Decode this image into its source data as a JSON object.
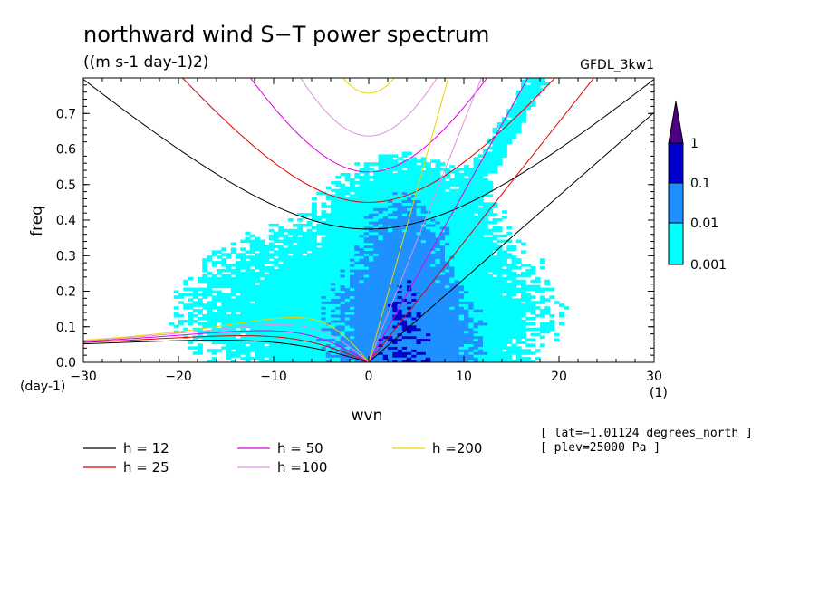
{
  "chart_data": {
    "type": "contour",
    "title": "northward wind S−T power spectrum",
    "subtitle": "((m s-1 day-1)2)",
    "model_label": "GFDL_3kw1",
    "xlabel": "wvn",
    "ylabel": "freq",
    "x_unit": "(1)",
    "y_unit": "(day-1)",
    "xlim": [
      -30,
      30
    ],
    "ylim": [
      0,
      0.8
    ],
    "x_ticks": [
      "−30",
      "−20",
      "−10",
      "0",
      "10",
      "20",
      "30"
    ],
    "y_ticks": [
      "0.0",
      "0.1",
      "0.2",
      "0.3",
      "0.4",
      "0.5",
      "0.6",
      "0.7"
    ],
    "x_tick_values": [
      -30,
      -20,
      -10,
      0,
      10,
      20,
      30
    ],
    "y_tick_values": [
      0,
      0.1,
      0.2,
      0.3,
      0.4,
      0.5,
      0.6,
      0.7
    ],
    "colorbar": {
      "labels": [
        "1",
        "0.1",
        "0.01",
        "0.001"
      ],
      "levels": [
        0.001,
        0.01,
        0.1,
        1
      ],
      "colors": [
        "#00ffff",
        "#1e90ff",
        "#0000cd",
        "#4b0082"
      ]
    },
    "dispersion_curves": [
      {
        "label": "h = 12",
        "h": 12,
        "color": "#000000"
      },
      {
        "label": "h = 25",
        "h": 25,
        "color": "#e00000"
      },
      {
        "label": "h = 50",
        "h": 50,
        "color": "#e000e0"
      },
      {
        "label": "h =100",
        "h": 100,
        "color": "#e090e0"
      },
      {
        "label": "h =200",
        "h": 200,
        "color": "#f0d000"
      }
    ],
    "info_lines": [
      "[ lat=−1.01124 degrees_north ]",
      "[ plev=25000 Pa ]"
    ]
  }
}
